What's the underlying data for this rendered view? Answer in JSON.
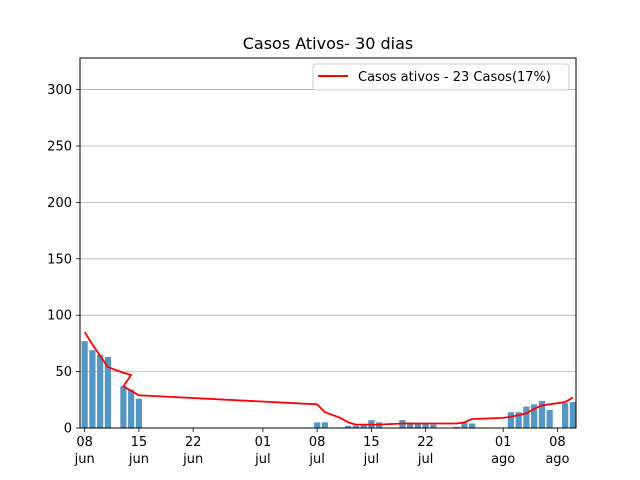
{
  "chart_data": {
    "type": "bar",
    "title": "Casos Ativos- 30 dias",
    "xlabel": "",
    "ylabel": "",
    "ylim": [
      0,
      328
    ],
    "yticks": [
      0,
      50,
      100,
      150,
      200,
      250,
      300
    ],
    "grid": "horizontal",
    "legend_position": "top-right",
    "xticks": [
      {
        "date": "2020-06-08",
        "label": [
          "08",
          "jun"
        ]
      },
      {
        "date": "2020-06-15",
        "label": [
          "15",
          "jun"
        ]
      },
      {
        "date": "2020-06-22",
        "label": [
          "22",
          "jun"
        ]
      },
      {
        "date": "2020-07-01",
        "label": [
          "01",
          "jul"
        ]
      },
      {
        "date": "2020-07-08",
        "label": [
          "08",
          "jul"
        ]
      },
      {
        "date": "2020-07-15",
        "label": [
          "15",
          "jul"
        ]
      },
      {
        "date": "2020-07-22",
        "label": [
          "22",
          "jul"
        ]
      },
      {
        "date": "2020-08-01",
        "label": [
          "01",
          "ago"
        ]
      },
      {
        "date": "2020-08-08",
        "label": [
          "08",
          "ago"
        ]
      }
    ],
    "bar_color": "#5497c4",
    "line_color": "#ff0000",
    "series": [
      {
        "name": "",
        "kind": "bar",
        "x": [
          "2020-06-08",
          "2020-06-09",
          "2020-06-10",
          "2020-06-11",
          "2020-06-13",
          "2020-06-14",
          "2020-06-15",
          "2020-07-08",
          "2020-07-09",
          "2020-07-12",
          "2020-07-13",
          "2020-07-14",
          "2020-07-15",
          "2020-07-16",
          "2020-07-19",
          "2020-07-20",
          "2020-07-21",
          "2020-07-22",
          "2020-07-23",
          "2020-07-26",
          "2020-07-27",
          "2020-07-28",
          "2020-08-02",
          "2020-08-03",
          "2020-08-04",
          "2020-08-05",
          "2020-08-06",
          "2020-08-07",
          "2020-08-09",
          "2020-08-10"
        ],
        "values": [
          77,
          69,
          65,
          63,
          37,
          34,
          26,
          5,
          5,
          2,
          2,
          3,
          7,
          5,
          7,
          5,
          4,
          4,
          3,
          1,
          5,
          4,
          14,
          14,
          19,
          21,
          24,
          16,
          22,
          23
        ]
      },
      {
        "name": "Casos ativos - 23 Casos(17%)",
        "kind": "line",
        "x": [
          "2020-06-08",
          "2020-06-09",
          "2020-06-10",
          "2020-06-11",
          "2020-06-13",
          "2020-06-14",
          "2020-06-13",
          "2020-06-15",
          "2020-07-08",
          "2020-07-09",
          "2020-07-11",
          "2020-07-12",
          "2020-07-13",
          "2020-07-15",
          "2020-07-16",
          "2020-07-19",
          "2020-07-20",
          "2020-07-22",
          "2020-07-23",
          "2020-07-26",
          "2020-07-27",
          "2020-07-28",
          "2020-08-01",
          "2020-08-02",
          "2020-08-04",
          "2020-08-05",
          "2020-08-06",
          "2020-08-07",
          "2020-08-08",
          "2020-08-09",
          "2020-08-10"
        ],
        "values": [
          85,
          74,
          64,
          54,
          49,
          47,
          37,
          29,
          21,
          14,
          9,
          5,
          3,
          3,
          3,
          4,
          4,
          4,
          4,
          4,
          5,
          8,
          9,
          10,
          13,
          17,
          20,
          21,
          22,
          23,
          27
        ]
      }
    ]
  }
}
